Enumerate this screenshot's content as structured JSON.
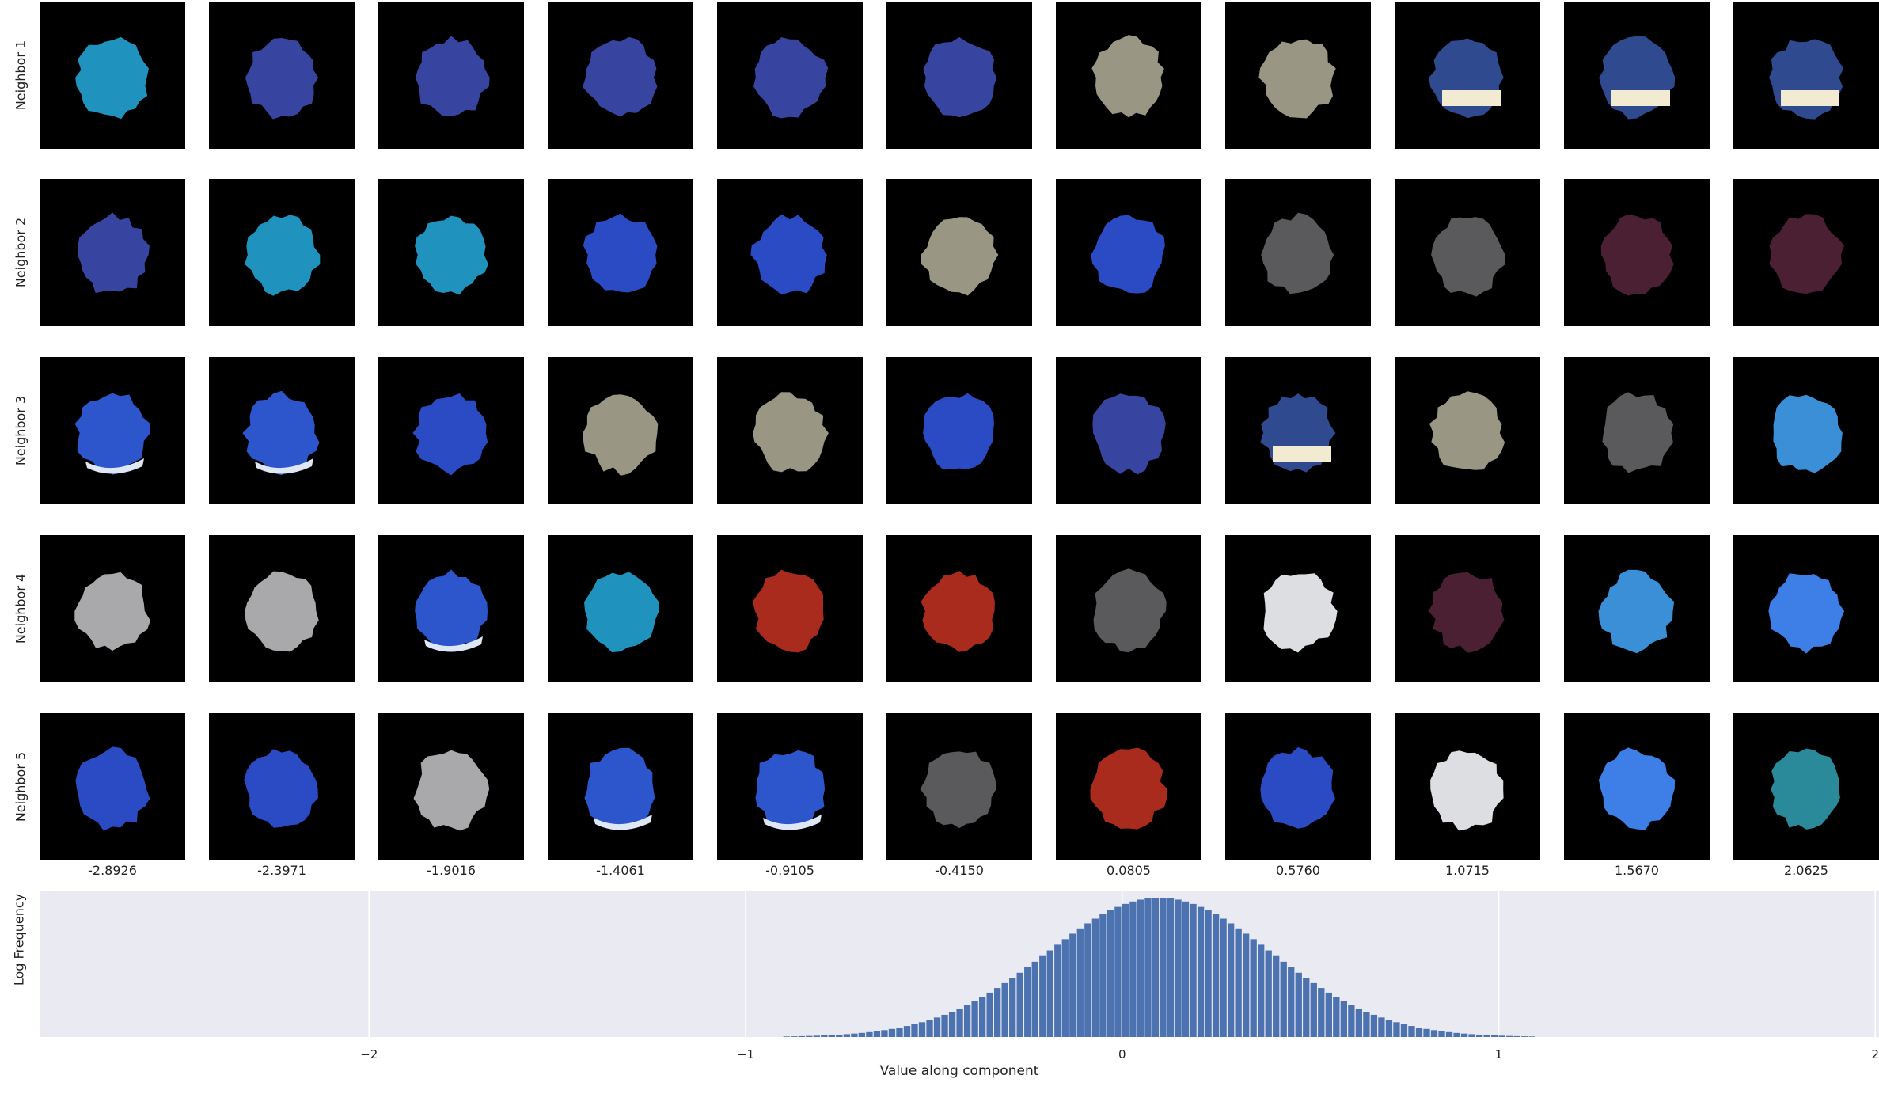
{
  "chart_data": {
    "type": "bar",
    "grid": {
      "row_labels": [
        "Neighbor 1",
        "Neighbor 2",
        "Neighbor 3",
        "Neighbor 4",
        "Neighbor 5"
      ],
      "column_labels": [
        "-2.8926",
        "-2.3971",
        "-1.9016",
        "-1.4061",
        "-0.9105",
        "-0.4150",
        "0.0805",
        "0.5760",
        "1.0715",
        "1.5670",
        "2.0625"
      ],
      "cells": [
        [
          "teal",
          "navy",
          "navy",
          "navy",
          "navy",
          "navy",
          "khaki",
          "khaki",
          "sky",
          "sky",
          "sky"
        ],
        [
          "navy",
          "teal",
          "teal",
          "blue",
          "blue",
          "khaki",
          "blue",
          "dgray",
          "dgray",
          "maroon",
          "maroon"
        ],
        [
          "blue-white",
          "blue-white",
          "blue",
          "khaki",
          "khaki",
          "blue",
          "navy",
          "sky",
          "khaki",
          "dgray",
          "lightblue"
        ],
        [
          "silver",
          "silver",
          "blue-white",
          "teal",
          "red",
          "red",
          "dgray",
          "white",
          "maroon",
          "lightblue",
          "brightblue"
        ],
        [
          "blue",
          "blue",
          "silver",
          "blue-white",
          "blue-white",
          "dgray",
          "red",
          "blue",
          "white",
          "brightblue",
          "cyan"
        ]
      ],
      "palette": {
        "teal": "#1f93bd",
        "navy": "#3845a0",
        "khaki": "#999784",
        "sky": "#2f4a8e",
        "blue": "#2a4bc4",
        "blue-white": "#2d55cc",
        "dgray": "#5a5a5c",
        "maroon": "#4b2032",
        "silver": "#a9a9ab",
        "red": "#a92b1d",
        "white": "#dcdee1",
        "lightblue": "#3a8fd6",
        "brightblue": "#3d7fe6",
        "cyan": "#2a8a99"
      }
    },
    "histogram": {
      "ylabel": "Log Frequency",
      "xlabel": "Value along component",
      "xlim": [
        -2.875,
        2.01
      ],
      "xticks": [
        -2,
        -1,
        0,
        1,
        2
      ],
      "xtick_labels": [
        "−2",
        "−1",
        "0",
        "1",
        "2"
      ],
      "bin_width": 0.02,
      "center": 0.1,
      "log_peak": 6.0,
      "log_width": 0.58,
      "bar_color": "#4c72b0",
      "background": "#eaeaf2",
      "grid": true
    }
  }
}
